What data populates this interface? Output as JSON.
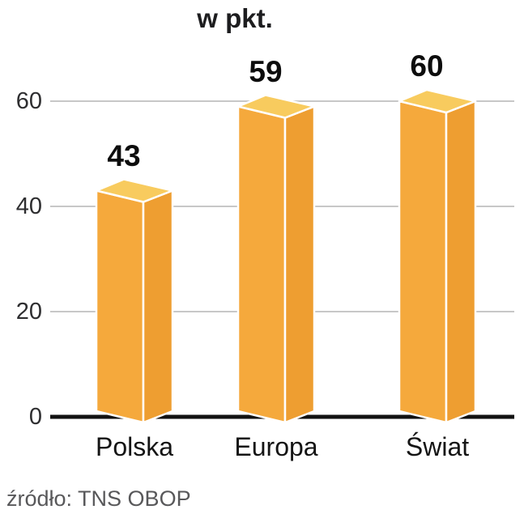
{
  "chart_data": {
    "type": "bar",
    "title": "w pkt.",
    "categories": [
      "Polska",
      "Europa",
      "Świat"
    ],
    "values": [
      43,
      59,
      60
    ],
    "value_labels": [
      "43",
      "59",
      "60"
    ],
    "yticks": [
      0,
      20,
      40,
      60
    ],
    "ylim": [
      0,
      60
    ],
    "grid": true,
    "legend_position": "none",
    "source": "źródło: TNS OBOP",
    "colors": {
      "bar_front": "#F5A93C",
      "bar_side": "#EE9E31",
      "bar_top": "#F8CB5E",
      "bar_edge": "#FFFFFF",
      "grid": "#C7C7C7",
      "axis": "#121212",
      "text": "#1A1A1A",
      "source_text": "#58585A"
    }
  }
}
